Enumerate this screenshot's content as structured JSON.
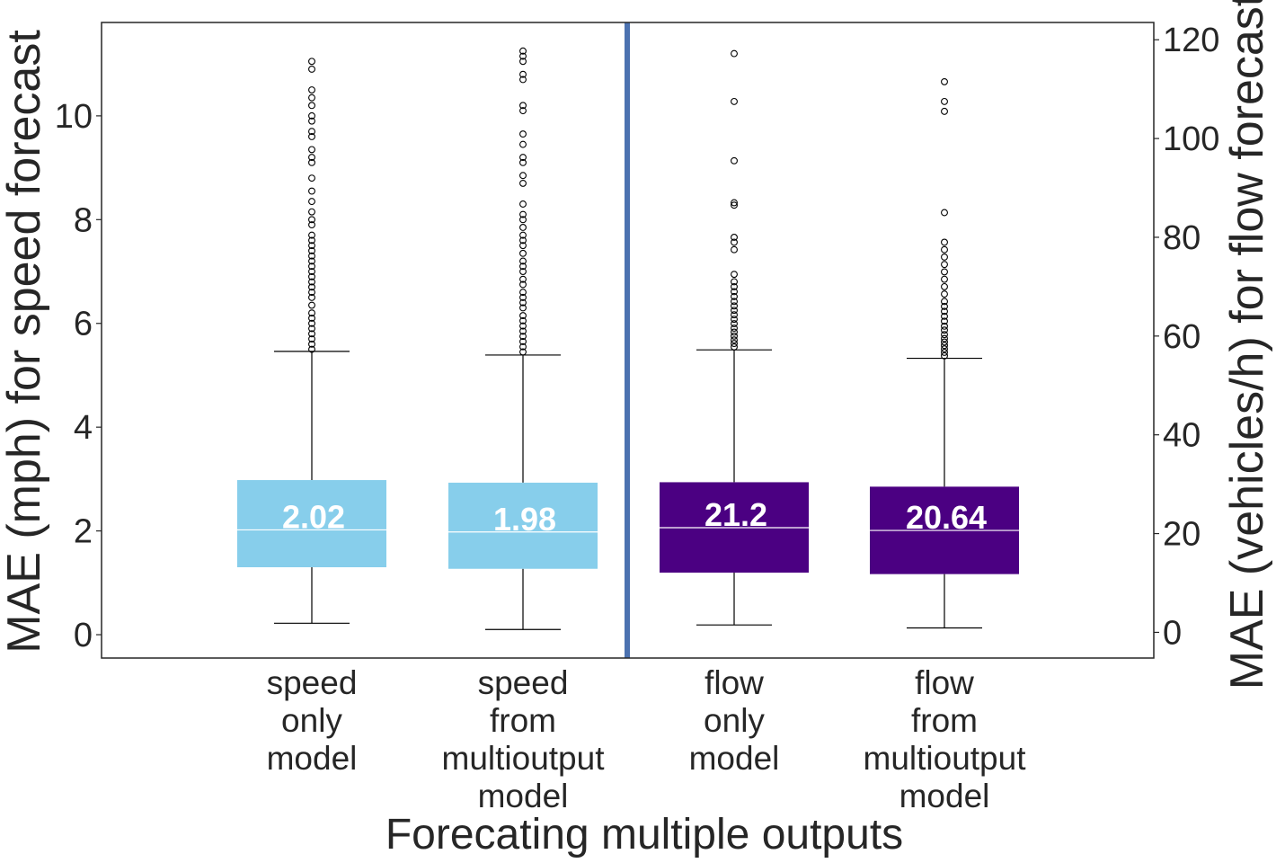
{
  "chart_data": {
    "type": "box",
    "title": "",
    "xlabel": "Forecating multiple outputs",
    "ylabel_left": "MAE (mph) for speed forecast",
    "ylabel_right": "MAE (vehicles/h) for flow forecast",
    "ylim_left": [
      -0.45,
      11.8
    ],
    "ylim_right": [
      -5.2,
      123.5
    ],
    "yticks_left": [
      "0",
      "2",
      "4",
      "6",
      "8",
      "10"
    ],
    "yticks_right": [
      "0",
      "20",
      "40",
      "60",
      "80",
      "100",
      "120"
    ],
    "grid": false,
    "separator_color": "#4c72b0",
    "series": [
      {
        "category": [
          "speed",
          "only",
          "model"
        ],
        "axis": "left",
        "color": "#87ceeb",
        "median_label": "2.02",
        "whisker_low": 0.22,
        "q1": 1.3,
        "median": 2.02,
        "q3": 2.98,
        "whisker_high": 5.46,
        "outliers": [
          5.5,
          5.6,
          5.7,
          5.8,
          5.9,
          6.0,
          6.1,
          6.2,
          6.35,
          6.5,
          6.6,
          6.7,
          6.8,
          6.9,
          7.0,
          7.1,
          7.2,
          7.3,
          7.4,
          7.5,
          7.6,
          7.7,
          7.9,
          8.0,
          8.15,
          8.35,
          8.55,
          8.8,
          9.1,
          9.2,
          9.35,
          9.6,
          9.7,
          9.9,
          10.0,
          10.2,
          10.35,
          10.5,
          10.9,
          11.05
        ]
      },
      {
        "category": [
          "speed",
          "from",
          "multioutput",
          "model"
        ],
        "axis": "left",
        "color": "#87ceeb",
        "median_label": "1.98",
        "whisker_low": 0.1,
        "q1": 1.27,
        "median": 1.98,
        "q3": 2.93,
        "whisker_high": 5.39,
        "outliers": [
          5.45,
          5.55,
          5.65,
          5.75,
          5.85,
          5.95,
          6.05,
          6.15,
          6.3,
          6.4,
          6.5,
          6.6,
          6.75,
          6.85,
          7.0,
          7.1,
          7.2,
          7.35,
          7.5,
          7.6,
          7.7,
          7.85,
          8.0,
          8.1,
          8.3,
          8.7,
          8.85,
          9.1,
          9.2,
          9.45,
          9.65,
          10.1,
          10.2,
          10.7,
          10.8,
          11.05,
          11.15,
          11.25
        ]
      },
      {
        "category": [
          "flow",
          "only",
          "model"
        ],
        "axis": "right",
        "color": "#4b0082",
        "median_label": "21.2",
        "whisker_low": 1.5,
        "q1": 12.1,
        "median": 21.2,
        "q3": 30.4,
        "whisker_high": 57.2,
        "outliers": [
          57.8,
          58.5,
          59.2,
          60.0,
          60.8,
          61.6,
          62.5,
          63.4,
          64.3,
          65.2,
          66.1,
          67.0,
          68.0,
          69.0,
          70.0,
          71.0,
          72.5,
          77.5,
          79.0,
          80.0,
          86.5,
          87.0,
          95.5,
          107.5,
          117.2
        ]
      },
      {
        "category": [
          "flow",
          "from",
          "multioutput",
          "model"
        ],
        "axis": "right",
        "color": "#4b0082",
        "median_label": "20.64",
        "whisker_low": 0.9,
        "q1": 11.8,
        "median": 20.64,
        "q3": 29.5,
        "whisker_high": 55.5,
        "outliers": [
          56.0,
          56.7,
          57.4,
          58.1,
          58.8,
          59.5,
          60.3,
          61.2,
          62.0,
          63.0,
          64.0,
          65.0,
          66.0,
          67.0,
          68.5,
          70.0,
          71.5,
          73.0,
          74.5,
          76.0,
          77.5,
          79.0,
          85.0,
          105.5,
          107.5,
          111.5
        ]
      }
    ]
  }
}
